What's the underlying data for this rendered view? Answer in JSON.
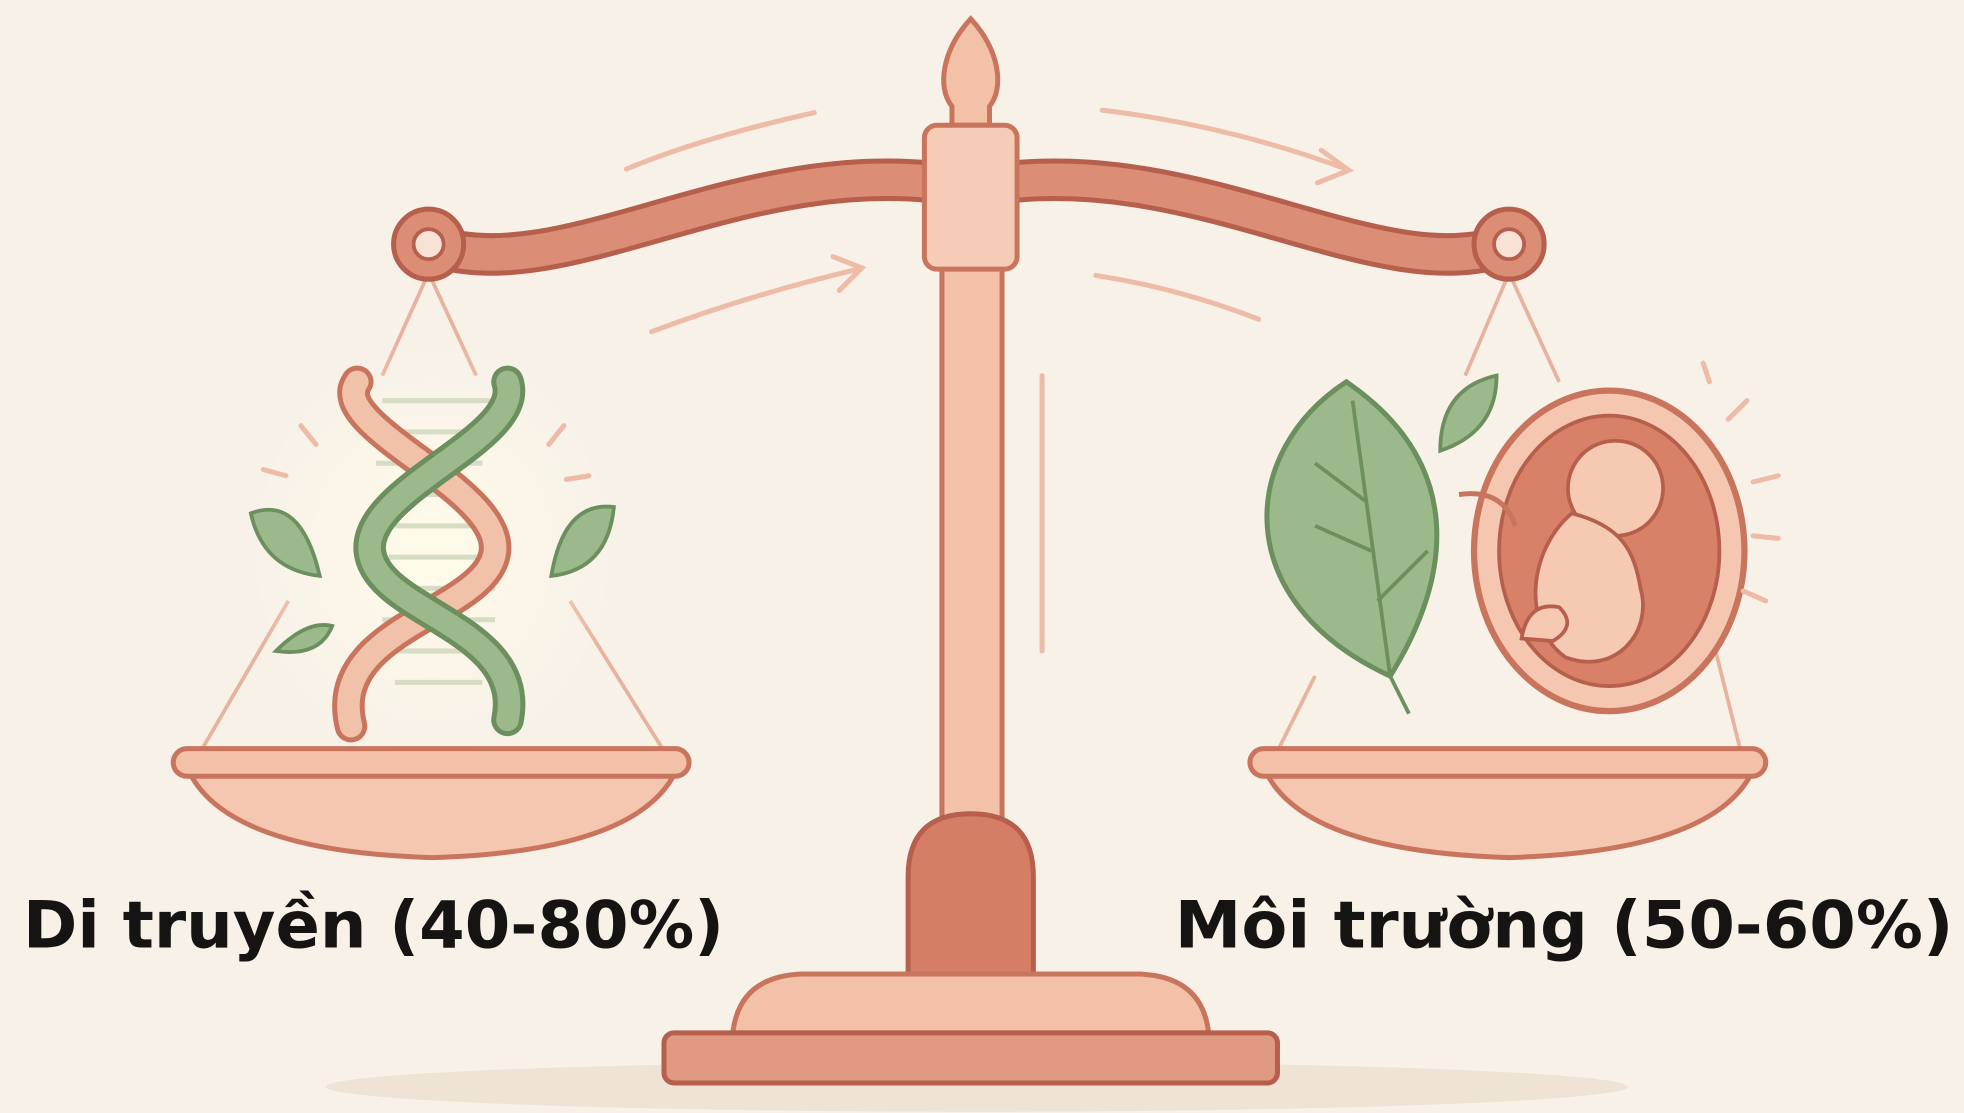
{
  "labels": {
    "left": "Di truyền (40-80%)",
    "right": "Môi trường (50-60%)"
  }
}
